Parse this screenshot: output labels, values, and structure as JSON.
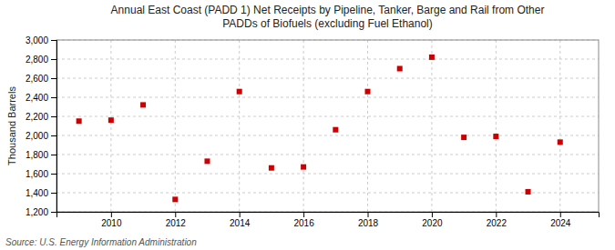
{
  "chart_data": {
    "type": "scatter",
    "title": "Annual East Coast (PADD 1) Net Receipts by Pipeline, Tanker, Barge and Rail from Other\nPADDs of Biofuels (excluding Fuel Ethanol)",
    "y_label": "Thousand Barrels",
    "source": "Source: U.S. Energy Information Administration",
    "x": [
      2009,
      2010,
      2011,
      2012,
      2013,
      2014,
      2015,
      2016,
      2017,
      2018,
      2019,
      2020,
      2021,
      2022,
      2023,
      2024
    ],
    "values": [
      2150,
      2160,
      2320,
      1330,
      1730,
      2460,
      1660,
      1670,
      2060,
      2460,
      2700,
      2820,
      1980,
      1990,
      1410,
      1930
    ],
    "color": "#cc0000",
    "marker": "square",
    "xlim": [
      2008.3,
      2025.2
    ],
    "xticks": [
      2010,
      2012,
      2014,
      2016,
      2018,
      2020,
      2022,
      2024
    ],
    "ylim": [
      1200,
      3000
    ],
    "yticks": [
      {
        "value": 1200,
        "label": "1,200"
      },
      {
        "value": 1400,
        "label": "1,400"
      },
      {
        "value": 1600,
        "label": "1,600"
      },
      {
        "value": 1800,
        "label": "1,800"
      },
      {
        "value": 2000,
        "label": "2,000"
      },
      {
        "value": 2200,
        "label": "2,200"
      },
      {
        "value": 2400,
        "label": "2,400"
      },
      {
        "value": 2600,
        "label": "2,600"
      },
      {
        "value": 2800,
        "label": "2,800"
      },
      {
        "value": 3000,
        "label": "3,000"
      }
    ],
    "grid": true
  }
}
